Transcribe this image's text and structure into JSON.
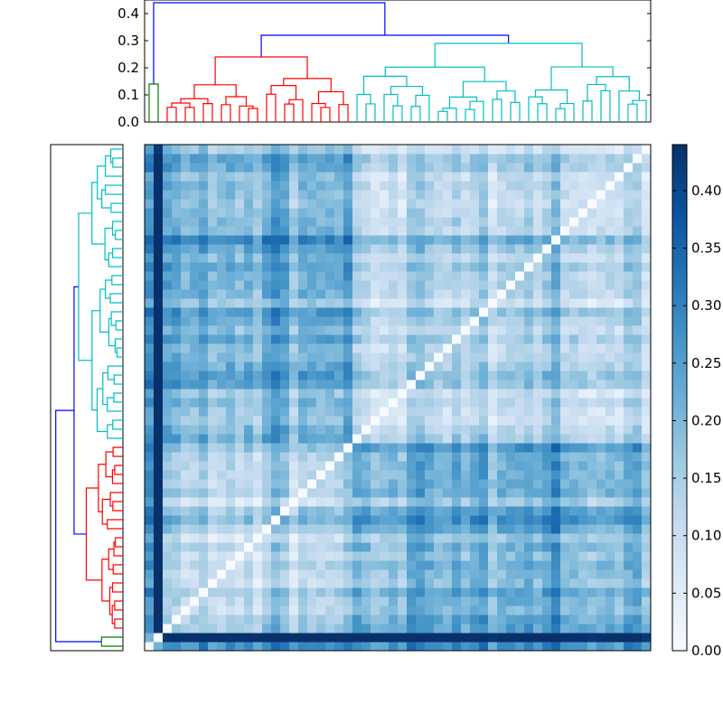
{
  "chart_data": [
    {
      "type": "dendrogram",
      "panel": "top",
      "orientation": "top",
      "ylim": [
        0,
        0.45
      ],
      "yticks": [
        "0.0",
        "0.1",
        "0.2",
        "0.3",
        "0.4"
      ],
      "n_leaves": 56,
      "root_height": 0.44,
      "clusters": [
        {
          "color": "#008000",
          "leaves": 2,
          "merge_height": 0.14
        },
        {
          "color": "#ff0000",
          "leaves": 21,
          "merge_height": 0.24
        },
        {
          "color": "#00bfbf",
          "leaves": 33,
          "merge_height": 0.29
        }
      ],
      "link_color_above": "#0000ff",
      "upper_merges": [
        0.32,
        0.44
      ]
    },
    {
      "type": "dendrogram",
      "panel": "left",
      "orientation": "left",
      "n_leaves": 56,
      "clusters_bottom_to_top": [
        "#008000",
        "#ff0000",
        "#00bfbf"
      ]
    },
    {
      "type": "heatmap",
      "rows": 56,
      "cols": 56,
      "colormap": "Blues",
      "vmin": 0.0,
      "vmax": 0.44,
      "diagonal": 0.0,
      "block_boundaries": [
        2,
        23,
        56
      ],
      "cluster_labels_bottom_to_top": [
        "green",
        "red",
        "cyan"
      ]
    },
    {
      "type": "colorbar",
      "range": [
        0.0,
        0.44
      ],
      "ticks": [
        "0.00",
        "0.05",
        "0.10",
        "0.15",
        "0.20",
        "0.25",
        "0.30",
        "0.35",
        "0.40"
      ]
    }
  ]
}
